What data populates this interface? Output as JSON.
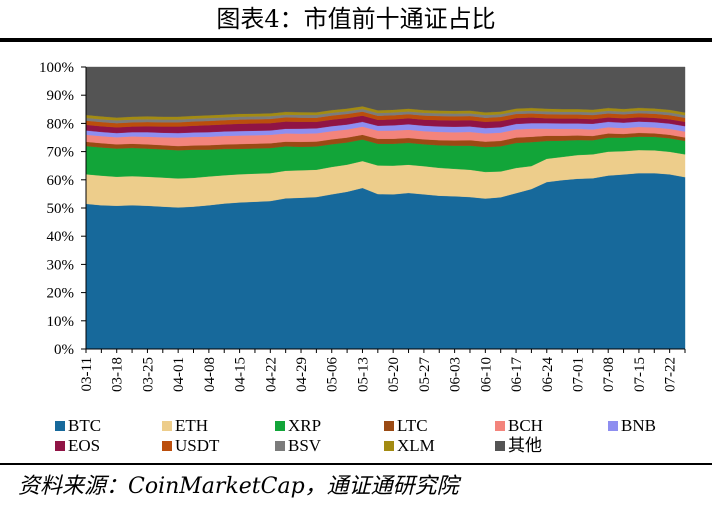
{
  "header": {
    "title": "图表4：市值前十通证占比"
  },
  "footer": {
    "source": "资料来源：CoinMarketCap，通证通研究院"
  },
  "chart_data": {
    "type": "area",
    "stacked": true,
    "x": [
      "03-11",
      "03-14",
      "03-18",
      "03-21",
      "03-25",
      "03-28",
      "04-01",
      "04-04",
      "04-08",
      "04-11",
      "04-15",
      "04-18",
      "04-22",
      "04-25",
      "04-29",
      "05-02",
      "05-06",
      "05-09",
      "05-13",
      "05-16",
      "05-20",
      "05-23",
      "05-27",
      "05-30",
      "06-03",
      "06-06",
      "06-10",
      "06-13",
      "06-17",
      "06-20",
      "06-24",
      "06-27",
      "07-01",
      "07-04",
      "07-08",
      "07-11",
      "07-15",
      "07-18",
      "07-22",
      "07-25"
    ],
    "x_tick_labels": [
      "03-11",
      "03-18",
      "03-25",
      "04-01",
      "04-08",
      "04-15",
      "04-22",
      "04-29",
      "05-06",
      "05-13",
      "05-20",
      "05-27",
      "06-03",
      "06-10",
      "06-17",
      "06-24",
      "07-01",
      "07-08",
      "07-15",
      "07-22"
    ],
    "y_tick_labels": [
      "0%",
      "10%",
      "20%",
      "30%",
      "40%",
      "50%",
      "60%",
      "70%",
      "80%",
      "90%",
      "100%"
    ],
    "ylim": [
      0,
      100
    ],
    "y_unit": "%",
    "legend_position": "bottom",
    "series": [
      {
        "name": "BTC",
        "color": "#17699b",
        "values": [
          51.5,
          51,
          50.8,
          51,
          50.8,
          50.5,
          50.2,
          50.5,
          51,
          51.5,
          52,
          52.5,
          53,
          54.5,
          55,
          55.5,
          56.5,
          58,
          60,
          57,
          56.5,
          57,
          56.5,
          56,
          55.8,
          55.5,
          55.5,
          56,
          57.5,
          59,
          61,
          62,
          62.5,
          63,
          64,
          65,
          65.5,
          65.5,
          65,
          64
        ]
      },
      {
        "name": "ETH",
        "color": "#edcd8b",
        "values": [
          10.5,
          10.5,
          10.3,
          10.3,
          10.3,
          10.3,
          10.3,
          10.2,
          10.2,
          10,
          10,
          10,
          10,
          10,
          10,
          10,
          10,
          10,
          10,
          10.5,
          10.5,
          10.3,
          10.3,
          10.2,
          10,
          10,
          9.8,
          9.5,
          9.3,
          8.5,
          8.5,
          8.5,
          8.7,
          8.8,
          8.8,
          8.7,
          8.6,
          8.5,
          8.4,
          8.5
        ]
      },
      {
        "name": "XRP",
        "color": "#12a539",
        "values": [
          10,
          10,
          10,
          10,
          10,
          10,
          10,
          10,
          9.5,
          9.3,
          9,
          9,
          9,
          8.8,
          8.5,
          8.5,
          8.3,
          8.2,
          8,
          8,
          8,
          8,
          8,
          8.2,
          8.5,
          8.8,
          9.2,
          9.3,
          9.2,
          8.8,
          6.5,
          6,
          5.5,
          5.2,
          5.2,
          5,
          5,
          5,
          5,
          5
        ]
      },
      {
        "name": "LTC",
        "color": "#9a4a14",
        "values": [
          1.5,
          1.5,
          1.5,
          1.5,
          1.5,
          1.5,
          1.5,
          1.5,
          1.6,
          1.6,
          1.7,
          1.7,
          1.7,
          1.7,
          1.8,
          1.8,
          1.8,
          1.8,
          1.8,
          1.8,
          1.8,
          1.8,
          1.8,
          1.9,
          1.9,
          2,
          2,
          2,
          2,
          2,
          1.9,
          1.8,
          1.7,
          1.6,
          1.5,
          1.4,
          1.4,
          1.3,
          1.3,
          1.3
        ]
      },
      {
        "name": "BCH",
        "color": "#f3847c",
        "values": [
          2.5,
          2.5,
          2.5,
          2.6,
          2.7,
          2.8,
          3,
          3,
          3,
          3,
          3,
          3,
          3,
          3,
          3,
          3,
          3,
          3,
          3,
          3,
          3,
          3,
          3,
          3,
          3,
          3,
          3,
          3,
          3,
          3,
          2.6,
          2.5,
          2.4,
          2.4,
          2.3,
          2.2,
          2.2,
          2.2,
          2.2,
          2.2
        ]
      },
      {
        "name": "BNB",
        "color": "#8e8ef0",
        "values": [
          1.5,
          1.5,
          1.5,
          1.5,
          1.6,
          1.6,
          1.6,
          1.6,
          1.6,
          1.6,
          1.6,
          1.6,
          1.6,
          1.7,
          1.8,
          1.8,
          1.8,
          1.8,
          1.8,
          1.8,
          1.9,
          2,
          2,
          2,
          2,
          2,
          2,
          2,
          2,
          2,
          2,
          2,
          2,
          2.1,
          2,
          2,
          2,
          2,
          2,
          2
        ]
      },
      {
        "name": "EOS",
        "color": "#901445",
        "values": [
          2,
          2,
          2,
          2,
          2.1,
          2.2,
          2.3,
          2.4,
          2.5,
          2.5,
          2.6,
          2.6,
          2.6,
          2.6,
          2.5,
          2.4,
          2.4,
          2.4,
          2.3,
          2.2,
          2.2,
          2.2,
          2.2,
          2.3,
          2.3,
          2.3,
          2.3,
          2.3,
          2.2,
          2.1,
          1.8,
          1.8,
          1.8,
          1.7,
          1.6,
          1.6,
          1.6,
          1.6,
          1.6,
          1.6
        ]
      },
      {
        "name": "USDT",
        "color": "#bb4e0c",
        "values": [
          1.5,
          1.5,
          1.5,
          1.5,
          1.5,
          1.5,
          1.5,
          1.5,
          1.5,
          1.5,
          1.5,
          1.5,
          1.5,
          1.5,
          1.5,
          1.5,
          1.5,
          1.5,
          1.5,
          1.5,
          1.5,
          1.5,
          1.5,
          1.5,
          1.5,
          1.5,
          1.5,
          1.5,
          1.5,
          1.5,
          1.5,
          1.5,
          1.5,
          1.5,
          1.5,
          1.5,
          1.5,
          1.5,
          1.5,
          1.5
        ]
      },
      {
        "name": "BSV",
        "color": "#7b7b7b",
        "values": [
          1,
          1,
          1,
          1,
          1,
          1,
          1,
          1,
          1,
          1,
          1,
          1,
          1,
          1,
          1,
          1,
          1,
          1,
          1,
          1,
          1,
          1,
          1,
          1,
          1,
          1,
          1,
          1,
          1,
          1,
          1,
          1,
          1,
          1,
          1,
          1,
          1,
          1,
          1,
          1
        ]
      },
      {
        "name": "XLM",
        "color": "#a38b12",
        "values": [
          1,
          1,
          1,
          1,
          1,
          1,
          1,
          1,
          1,
          1,
          1,
          1,
          1,
          1,
          1,
          1,
          1,
          1,
          1,
          1,
          1,
          1,
          1,
          1,
          1,
          1,
          1,
          1,
          1,
          1,
          1,
          1,
          1,
          1,
          1,
          1,
          1,
          1,
          1,
          1
        ]
      },
      {
        "name": "其他",
        "color": "#545454",
        "values": [
          17,
          17.5,
          17.9,
          17.6,
          17.5,
          17.6,
          17.6,
          17.3,
          17.1,
          16.8,
          16.6,
          16.6,
          16.6,
          16.2,
          16.4,
          16.5,
          15.7,
          15.3,
          14.6,
          15.9,
          15.6,
          15.2,
          15.7,
          15.9,
          16,
          15.9,
          16.7,
          16.4,
          15.3,
          15.1,
          15.2,
          15.4,
          15.4,
          15.7,
          15.1,
          15.6,
          15.2,
          15.4,
          15.9,
          16.9
        ]
      }
    ]
  }
}
